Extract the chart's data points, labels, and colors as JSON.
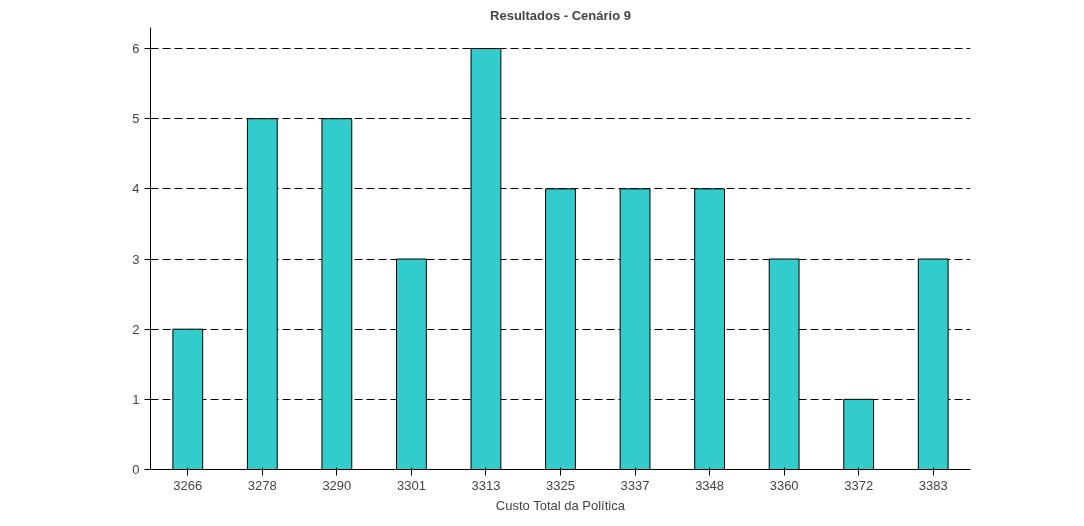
{
  "chart_data": {
    "type": "bar",
    "title": "Resultados - Cenário 9",
    "xlabel": "Custo Total da Política",
    "categories": [
      "3266",
      "3278",
      "3290",
      "3301",
      "3313",
      "3325",
      "3337",
      "3348",
      "3360",
      "3372",
      "3383"
    ],
    "values": [
      2,
      5,
      5,
      3,
      6,
      4,
      4,
      4,
      3,
      1,
      3
    ],
    "color": "#33cccc",
    "ylim": [
      0,
      6
    ],
    "yticks": [
      0,
      1,
      2,
      3,
      4,
      5,
      6
    ],
    "grid": "y"
  }
}
